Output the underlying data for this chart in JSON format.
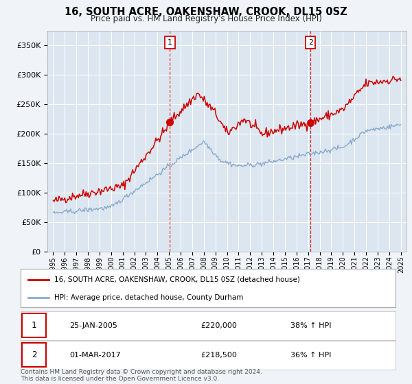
{
  "title": "16, SOUTH ACRE, OAKENSHAW, CROOK, DL15 0SZ",
  "subtitle": "Price paid vs. HM Land Registry's House Price Index (HPI)",
  "background_color": "#f0f4f8",
  "plot_bg_color": "#dce6f0",
  "grid_color": "#ffffff",
  "sale1_label": "25-JAN-2005",
  "sale1_price_str": "£220,000",
  "sale1_hpi": "38% ↑ HPI",
  "sale1_x": 2005.07,
  "sale1_y": 220000,
  "sale2_label": "01-MAR-2017",
  "sale2_price_str": "£218,500",
  "sale2_hpi": "36% ↑ HPI",
  "sale2_x": 2017.2,
  "sale2_y": 218500,
  "legend_line1": "16, SOUTH ACRE, OAKENSHAW, CROOK, DL15 0SZ (detached house)",
  "legend_line2": "HPI: Average price, detached house, County Durham",
  "footer": "Contains HM Land Registry data © Crown copyright and database right 2024.\nThis data is licensed under the Open Government Licence v3.0.",
  "ylim": [
    0,
    375000
  ],
  "yticks": [
    0,
    50000,
    100000,
    150000,
    200000,
    250000,
    300000,
    350000
  ],
  "ytick_labels": [
    "£0",
    "£50K",
    "£100K",
    "£150K",
    "£200K",
    "£250K",
    "£300K",
    "£350K"
  ],
  "red_color": "#cc0000",
  "blue_color": "#88aacc",
  "vline_color": "#cc0000",
  "xmin": 1994.5,
  "xmax": 2025.5
}
